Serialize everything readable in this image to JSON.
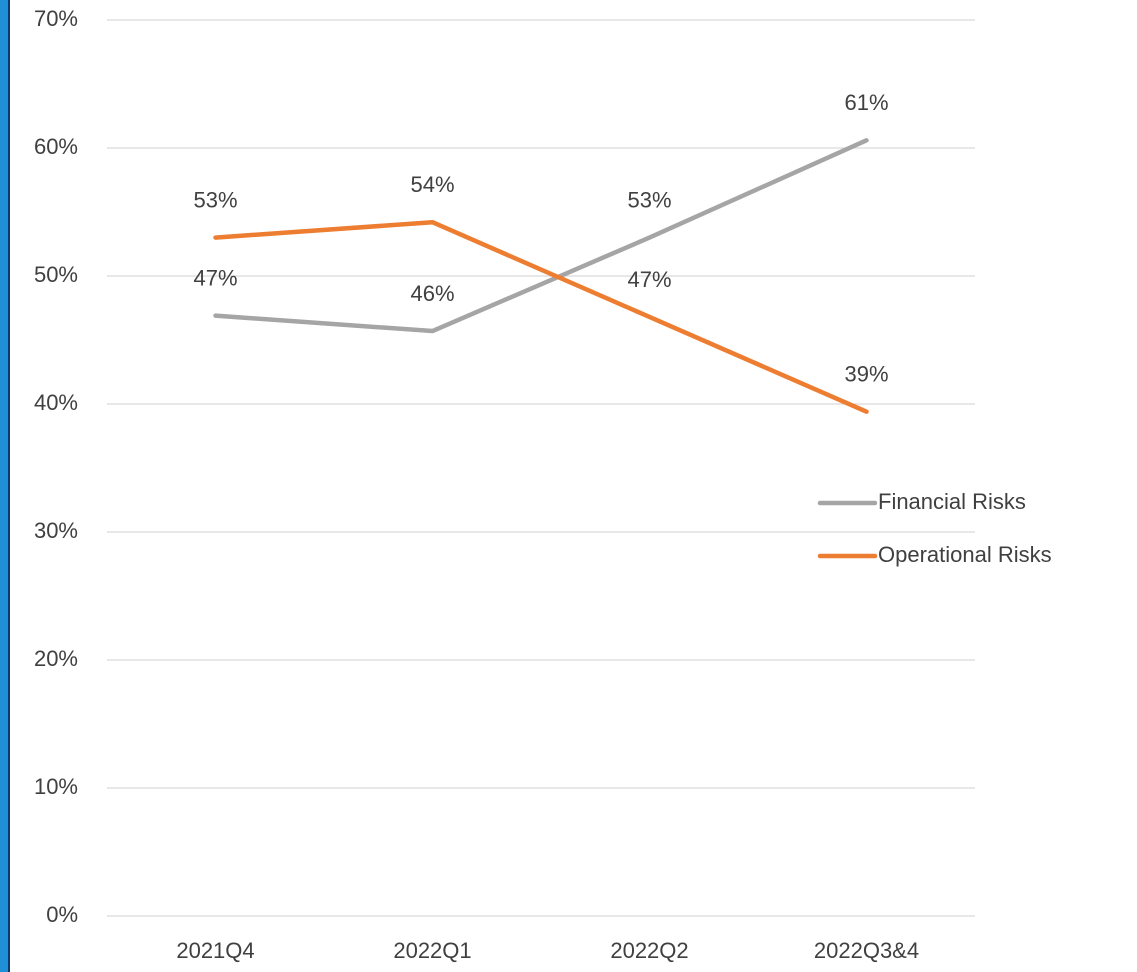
{
  "chart_data": {
    "type": "line",
    "categories": [
      "2021Q4",
      "2022Q1",
      "2022Q2",
      "2022Q3&4"
    ],
    "series": [
      {
        "name": "Financial Risks",
        "color": "#a5a5a5",
        "values": [
          46.9,
          45.7,
          53.0,
          60.6
        ],
        "value_labels": [
          "47%",
          "46%",
          "53%",
          "61%"
        ]
      },
      {
        "name": "Operational Risks",
        "color": "#ed7d31",
        "values": [
          53.0,
          54.2,
          46.8,
          39.4
        ],
        "value_labels": [
          "53%",
          "54%",
          "47%",
          "39%"
        ]
      }
    ],
    "ylim": [
      0,
      70
    ],
    "yticks": [
      {
        "value": 0,
        "label": "0%"
      },
      {
        "value": 10,
        "label": "10%"
      },
      {
        "value": 20,
        "label": "20%"
      },
      {
        "value": 30,
        "label": "30%"
      },
      {
        "value": 40,
        "label": "40%"
      },
      {
        "value": 50,
        "label": "50%"
      },
      {
        "value": 60,
        "label": "60%"
      },
      {
        "value": 70,
        "label": "70%"
      }
    ],
    "grid": true,
    "legend": "right"
  }
}
